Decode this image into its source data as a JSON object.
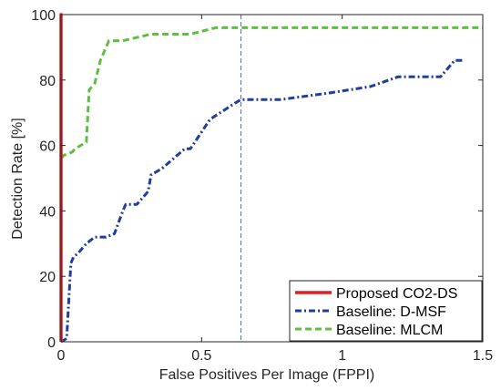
{
  "chart_data": {
    "type": "line",
    "title": "",
    "xlabel": "False Positives Per Image (FPPI)",
    "ylabel": "Detection Rate [%]",
    "xlim": [
      0,
      1.5
    ],
    "ylim": [
      0,
      100
    ],
    "xticks": [
      "0",
      "0.5",
      "1",
      "1.5"
    ],
    "yticks": [
      "0",
      "20",
      "40",
      "60",
      "80",
      "100"
    ],
    "grid": false,
    "legend_position": "bottom-right",
    "reference_line": {
      "orientation": "vertical",
      "x": 0.64,
      "style": "dashed",
      "color": "#4a72b0"
    },
    "series": [
      {
        "name": "Proposed CO2-DS",
        "color": "#e02020",
        "style": "solid",
        "x": [
          0,
          0,
          0.005
        ],
        "y": [
          0,
          100,
          100
        ]
      },
      {
        "name": "Baseline: D-MSF",
        "color": "#1f3ea0",
        "style": "dashdot",
        "x": [
          0,
          0.02,
          0.035,
          0.045,
          0.06,
          0.09,
          0.12,
          0.16,
          0.19,
          0.22,
          0.23,
          0.27,
          0.31,
          0.32,
          0.36,
          0.44,
          0.46,
          0.53,
          0.62,
          0.64,
          0.78,
          0.95,
          1.1,
          1.2,
          1.35,
          1.4,
          1.43
        ],
        "y": [
          0,
          1,
          24,
          26,
          27,
          30,
          32,
          32,
          33,
          40,
          42,
          42,
          46,
          51,
          53,
          59,
          59,
          68,
          73,
          74,
          74,
          76,
          78,
          81,
          81,
          86,
          86
        ]
      },
      {
        "name": "Baseline: MLCM",
        "color": "#5cbf40",
        "style": "dashed",
        "x": [
          0,
          0,
          0.01,
          0.04,
          0.05,
          0.09,
          0.1,
          0.12,
          0.14,
          0.17,
          0.22,
          0.32,
          0.46,
          0.55,
          0.64,
          1.5
        ],
        "y": [
          50,
          56,
          57,
          58,
          59,
          61,
          77,
          79,
          86,
          92,
          92,
          94,
          94,
          96,
          96,
          96
        ]
      }
    ]
  }
}
